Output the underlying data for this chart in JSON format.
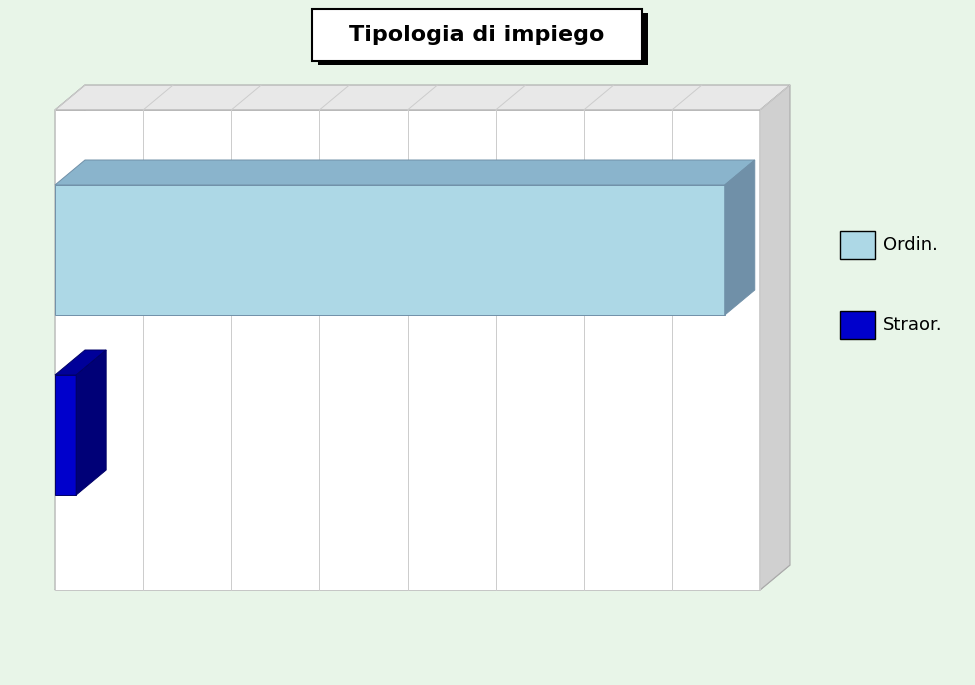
{
  "title": "Tipologia di impiego",
  "categories": [
    "Ordin.",
    "Straor."
  ],
  "values": [
    95,
    3
  ],
  "max_value": 100,
  "bar_face_color": "#add8e6",
  "bar_top_color": "#8ab4cc",
  "bar_side_color": "#7090a8",
  "bar2_face_color": "#0000cc",
  "bar2_top_color": "#000099",
  "bar2_side_color": "#000077",
  "background_color": "#e8f5e8",
  "chart_front_color": "#ffffff",
  "chart_left_color": "#d8d8d8",
  "chart_bottom_color": "#c8c8c8",
  "title_fontsize": 16,
  "legend_fontsize": 13
}
